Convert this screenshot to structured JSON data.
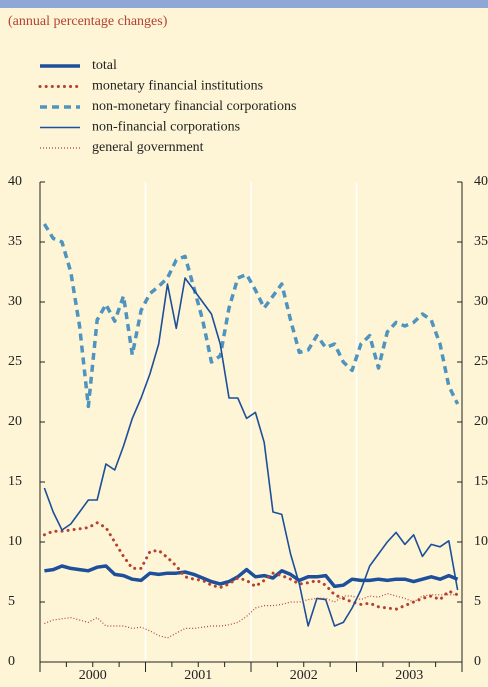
{
  "chart_data": {
    "type": "line",
    "subtitle": "(annual percentage changes)",
    "x_labels": [
      "2000",
      "2001",
      "2002",
      "2003"
    ],
    "ylim": [
      0,
      40
    ],
    "yticks": [
      0,
      5,
      10,
      15,
      20,
      25,
      30,
      35,
      40
    ],
    "y2lim": [
      0,
      40
    ],
    "y2ticks": [
      0,
      5,
      10,
      15,
      20,
      25,
      30,
      35,
      40
    ],
    "grid": true,
    "series": [
      {
        "name": "total",
        "color": "#1d4f9a",
        "style": "thick",
        "values": [
          7.6,
          7.7,
          8.0,
          7.8,
          7.7,
          7.6,
          7.9,
          8.0,
          7.3,
          7.2,
          6.9,
          6.8,
          7.4,
          7.3,
          7.4,
          7.4,
          7.5,
          7.3,
          7.0,
          6.7,
          6.5,
          6.7,
          7.1,
          7.7,
          7.1,
          7.2,
          7.0,
          7.6,
          7.3,
          6.8,
          7.1,
          7.1,
          7.2,
          6.3,
          6.4,
          6.9,
          6.8,
          6.8,
          6.9,
          6.8,
          6.9,
          6.9,
          6.7,
          6.9,
          7.1,
          6.9,
          7.2,
          6.9
        ]
      },
      {
        "name": "monetary financial institutions",
        "color": "#b5412f",
        "style": "dotted",
        "values": [
          10.6,
          10.9,
          10.9,
          11.0,
          11.1,
          11.2,
          11.6,
          11.2,
          10.0,
          8.8,
          7.8,
          7.8,
          9.2,
          9.3,
          8.7,
          8.0,
          7.1,
          6.9,
          6.8,
          6.4,
          6.2,
          6.5,
          7.0,
          6.8,
          6.3,
          6.8,
          7.4,
          7.2,
          6.9,
          6.5,
          6.6,
          6.8,
          6.4,
          5.6,
          5.3,
          5.0,
          4.8,
          4.9,
          4.6,
          4.5,
          4.4,
          4.7,
          5.0,
          5.3,
          5.5,
          5.2,
          5.9,
          5.6
        ]
      },
      {
        "name": "non-monetary financial corporations",
        "color": "#4f93bf",
        "style": "dashed",
        "values": [
          36.5,
          35.3,
          35.0,
          32.5,
          28.0,
          21.3,
          28.5,
          29.8,
          28.4,
          30.5,
          25.6,
          29.3,
          30.7,
          31.3,
          32.0,
          33.5,
          33.8,
          31.2,
          28.5,
          25.0,
          25.5,
          29.5,
          32.0,
          32.3,
          31.0,
          29.5,
          30.5,
          31.5,
          28.5,
          25.8,
          26.0,
          27.2,
          26.2,
          26.5,
          25.0,
          24.3,
          26.5,
          27.2,
          24.5,
          27.5,
          28.3,
          28.0,
          28.3,
          29.0,
          28.5,
          26.5,
          23.0,
          21.5
        ]
      },
      {
        "name": "non-financial corporations",
        "color": "#1d4f9a",
        "style": "thin",
        "values": [
          14.5,
          12.5,
          11.0,
          11.5,
          12.5,
          13.5,
          13.5,
          16.5,
          16.0,
          18.0,
          20.3,
          22.0,
          24.0,
          26.5,
          31.5,
          27.8,
          32.0,
          31.0,
          30.0,
          29.0,
          26.5,
          22.0,
          22.0,
          20.3,
          20.8,
          18.3,
          12.5,
          12.3,
          9.0,
          6.5,
          3.0,
          5.3,
          5.2,
          3.0,
          3.3,
          4.5,
          6.0,
          8.0,
          9.0,
          10.0,
          10.8,
          9.8,
          10.6,
          8.8,
          9.8,
          9.6,
          10.1,
          6.0
        ]
      },
      {
        "name": "general government",
        "color": "#b5412f",
        "style": "fine-dotted",
        "values": [
          3.2,
          3.5,
          3.6,
          3.7,
          3.5,
          3.3,
          3.7,
          3.0,
          3.0,
          3.0,
          2.8,
          2.9,
          2.6,
          2.2,
          2.0,
          2.4,
          2.8,
          2.8,
          2.9,
          3.0,
          3.0,
          3.1,
          3.3,
          3.8,
          4.5,
          4.7,
          4.7,
          4.8,
          5.0,
          5.0,
          5.2,
          5.3,
          5.3,
          5.0,
          5.5,
          5.5,
          5.2,
          5.5,
          5.4,
          5.7,
          5.5,
          5.3,
          5.0,
          5.5,
          5.6,
          5.6,
          5.6,
          5.6
        ]
      }
    ]
  }
}
